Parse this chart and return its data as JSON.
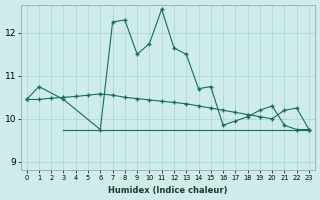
{
  "background_color": "#ceecea",
  "grid_color": "#afd8d4",
  "line_color": "#1a6b5a",
  "xlabel": "Humidex (Indice chaleur)",
  "xlim": [
    -0.5,
    23.5
  ],
  "ylim": [
    8.8,
    12.65
  ],
  "yticks": [
    9,
    10,
    11,
    12
  ],
  "xticks": [
    0,
    1,
    2,
    3,
    4,
    5,
    6,
    7,
    8,
    9,
    10,
    11,
    12,
    13,
    14,
    15,
    16,
    17,
    18,
    19,
    20,
    21,
    22,
    23
  ],
  "line1_x": [
    0,
    1,
    3,
    6,
    7,
    8,
    9,
    10,
    11,
    12,
    13,
    14,
    15,
    16,
    17,
    18,
    19,
    20,
    21,
    22,
    23
  ],
  "line1_y": [
    10.45,
    10.75,
    10.45,
    9.75,
    12.25,
    12.3,
    11.5,
    11.75,
    12.55,
    11.65,
    11.5,
    10.7,
    10.75,
    9.85,
    9.95,
    10.05,
    10.2,
    10.3,
    9.85,
    9.75,
    9.75
  ],
  "line2_x": [
    0,
    1,
    2,
    3,
    4,
    5,
    6,
    7,
    8,
    9,
    10,
    11,
    12,
    13,
    14,
    15,
    16,
    17,
    18,
    19,
    20,
    21,
    22,
    23
  ],
  "line2_y": [
    10.45,
    10.45,
    10.48,
    10.5,
    10.52,
    10.55,
    10.58,
    10.55,
    10.5,
    10.47,
    10.44,
    10.41,
    10.38,
    10.35,
    10.3,
    10.25,
    10.2,
    10.15,
    10.1,
    10.05,
    10.0,
    10.2,
    10.25,
    9.75
  ],
  "line3_x": [
    3,
    23
  ],
  "line3_y": [
    9.75,
    9.75
  ]
}
